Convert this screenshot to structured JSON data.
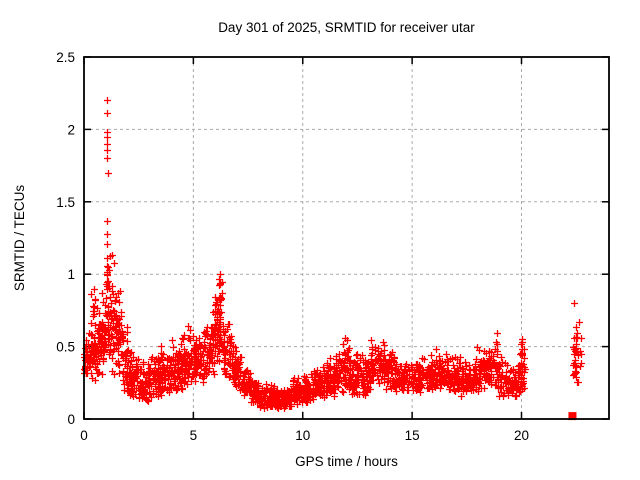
{
  "figure": {
    "window_background": "#ffffff"
  },
  "chart_data": {
    "type": "scatter",
    "title": "Day 301 of 2025, SRMTID for receiver utar",
    "xlabel": "GPS time / hours",
    "ylabel": "SRMTID / TECUs",
    "xlim": [
      0,
      24
    ],
    "ylim": [
      0,
      2.5
    ],
    "xticks": [
      0,
      5,
      10,
      15,
      20
    ],
    "yticks": [
      0,
      0.5,
      1,
      1.5,
      2,
      2.5
    ],
    "grid": true,
    "grid_style": "dashed",
    "grid_color": "#aaaaaa",
    "frame_color": "#000000",
    "legend": false,
    "marker": {
      "shape": "plus",
      "color": "#ff0000",
      "size": 7,
      "stroke": 1.3
    },
    "series_name": "SRMTID",
    "description": "Dense red plus-marker scatter of SRMTID values vs GPS time; band 0.1-0.6 TECUs with spikes to 2.2 near 1.1 h and 1.0 near 6.2 h; data gap 20.2-22.3 h; isolated vertical cluster near 22.3-22.7 h and a solid block of points at ~0 TECUs near 22.3 h.",
    "band_bins": [
      [
        0.0,
        0.05,
        0.3,
        0.52,
        12
      ],
      [
        0.05,
        0.3,
        0.28,
        0.62,
        30
      ],
      [
        0.3,
        0.55,
        0.25,
        0.9,
        40
      ],
      [
        0.55,
        0.8,
        0.3,
        0.8,
        40
      ],
      [
        0.8,
        1.0,
        0.3,
        0.95,
        35
      ],
      [
        1.0,
        1.2,
        0.35,
        1.15,
        30
      ],
      [
        1.2,
        1.45,
        0.3,
        1.1,
        35
      ],
      [
        1.45,
        1.75,
        0.28,
        1.0,
        38
      ],
      [
        1.75,
        2.0,
        0.14,
        0.7,
        35
      ],
      [
        2.0,
        2.5,
        0.12,
        0.48,
        60
      ],
      [
        2.5,
        3.0,
        0.1,
        0.42,
        60
      ],
      [
        3.0,
        3.5,
        0.15,
        0.52,
        60
      ],
      [
        3.5,
        4.0,
        0.15,
        0.57,
        60
      ],
      [
        4.0,
        4.5,
        0.18,
        0.62,
        60
      ],
      [
        4.5,
        5.0,
        0.2,
        0.65,
        60
      ],
      [
        5.0,
        5.5,
        0.25,
        0.6,
        60
      ],
      [
        5.5,
        5.95,
        0.3,
        0.78,
        55
      ],
      [
        5.95,
        6.35,
        0.35,
        1.0,
        55
      ],
      [
        6.35,
        6.8,
        0.28,
        0.72,
        55
      ],
      [
        6.8,
        7.2,
        0.2,
        0.5,
        50
      ],
      [
        7.2,
        7.6,
        0.14,
        0.36,
        50
      ],
      [
        7.6,
        8.0,
        0.11,
        0.3,
        50
      ],
      [
        8.0,
        9.0,
        0.07,
        0.25,
        110
      ],
      [
        9.0,
        9.5,
        0.07,
        0.22,
        55
      ],
      [
        9.5,
        10.0,
        0.09,
        0.3,
        55
      ],
      [
        10.0,
        10.5,
        0.11,
        0.33,
        58
      ],
      [
        10.5,
        11.0,
        0.14,
        0.38,
        58
      ],
      [
        11.0,
        11.5,
        0.15,
        0.43,
        58
      ],
      [
        11.5,
        12.1,
        0.18,
        0.58,
        66
      ],
      [
        12.1,
        12.6,
        0.16,
        0.5,
        58
      ],
      [
        12.6,
        13.1,
        0.15,
        0.45,
        58
      ],
      [
        13.1,
        13.7,
        0.24,
        0.56,
        62
      ],
      [
        13.7,
        14.2,
        0.2,
        0.5,
        58
      ],
      [
        14.2,
        14.8,
        0.18,
        0.45,
        60
      ],
      [
        14.8,
        15.4,
        0.18,
        0.43,
        60
      ],
      [
        15.4,
        16.0,
        0.2,
        0.48,
        60
      ],
      [
        16.0,
        16.6,
        0.2,
        0.5,
        60
      ],
      [
        16.6,
        17.2,
        0.18,
        0.46,
        60
      ],
      [
        17.2,
        17.8,
        0.16,
        0.44,
        60
      ],
      [
        17.8,
        18.4,
        0.18,
        0.5,
        60
      ],
      [
        18.4,
        18.9,
        0.2,
        0.62,
        55
      ],
      [
        18.9,
        19.5,
        0.15,
        0.45,
        58
      ],
      [
        19.5,
        19.85,
        0.15,
        0.4,
        40
      ],
      [
        19.85,
        20.15,
        0.18,
        0.55,
        35
      ],
      [
        22.3,
        22.75,
        0.2,
        0.72,
        26
      ]
    ],
    "columns": [
      {
        "x": 6.2,
        "xjit": 0.05,
        "ylo": 0.5,
        "yhi": 1.0,
        "n": 14
      },
      {
        "x": 1.07,
        "xjit": 0.03,
        "ylo": 0.9,
        "yhi": 1.18,
        "n": 8
      },
      {
        "x": 20.0,
        "xjit": 0.04,
        "ylo": 0.3,
        "yhi": 0.55,
        "n": 8
      },
      {
        "x": 22.45,
        "xjit": 0.06,
        "ylo": 0.28,
        "yhi": 0.7,
        "n": 12
      }
    ],
    "outliers": [
      [
        1.06,
        2.2
      ],
      [
        1.06,
        2.11
      ],
      [
        1.07,
        1.98
      ],
      [
        1.06,
        1.95
      ],
      [
        1.07,
        1.9
      ],
      [
        1.06,
        1.86
      ],
      [
        1.07,
        1.8
      ],
      [
        1.08,
        1.7
      ],
      [
        1.05,
        1.37
      ],
      [
        1.07,
        1.28
      ],
      [
        1.06,
        1.21
      ],
      [
        1.3,
        1.13
      ],
      [
        1.35,
        1.08
      ],
      [
        6.2,
        1.0
      ],
      [
        6.18,
        0.97
      ],
      [
        6.22,
        0.94
      ],
      [
        22.4,
        0.8
      ],
      [
        0.45,
        0.9
      ],
      [
        0.32,
        0.86
      ]
    ],
    "zero_cluster": {
      "x": 22.33,
      "y": 0.02
    }
  }
}
